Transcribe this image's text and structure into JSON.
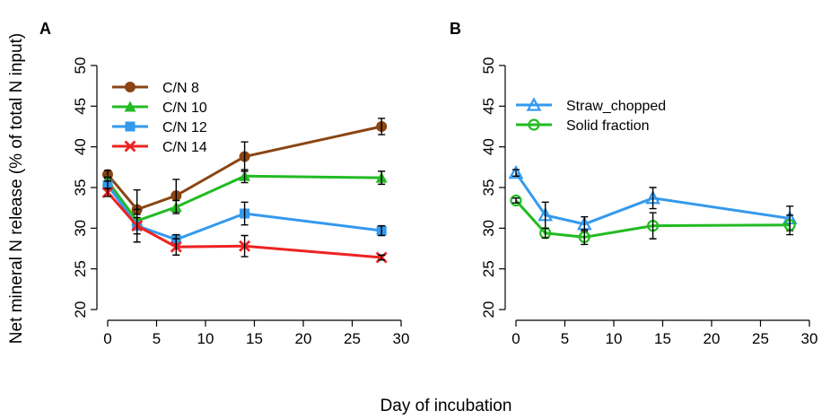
{
  "shared": {
    "ylabel": "Net mineral N release (% of total N input)",
    "xlabel": "Day of incubation"
  },
  "chart_data": [
    {
      "panel": "A",
      "type": "line",
      "xlim": [
        0,
        30
      ],
      "ylim": [
        20,
        50
      ],
      "xticks": [
        0,
        5,
        10,
        15,
        20,
        25,
        30
      ],
      "yticks": [
        20,
        25,
        30,
        35,
        40,
        45,
        50
      ],
      "legend_position": "top-left",
      "series": [
        {
          "name": "C/N 8",
          "color": "#8B4513",
          "marker": "circle",
          "x": [
            0,
            3,
            7,
            14,
            28
          ],
          "y": [
            36.6,
            32.3,
            34.0,
            38.8,
            42.5
          ],
          "err": [
            0.5,
            2.4,
            2.0,
            1.8,
            1.0
          ]
        },
        {
          "name": "C/N 10",
          "color": "#22BB22",
          "marker": "triangle",
          "x": [
            0,
            3,
            7,
            14,
            28
          ],
          "y": [
            35.8,
            30.9,
            32.6,
            36.4,
            36.2
          ],
          "err": [
            0.5,
            0.8,
            0.8,
            0.8,
            0.8
          ]
        },
        {
          "name": "C/N 12",
          "color": "#3399EE",
          "marker": "square",
          "x": [
            0,
            3,
            7,
            14,
            28
          ],
          "y": [
            35.3,
            30.3,
            28.6,
            31.8,
            29.7
          ],
          "err": [
            0.5,
            1.0,
            0.6,
            1.4,
            0.6
          ]
        },
        {
          "name": "C/N 14",
          "color": "#EE2222",
          "marker": "cross",
          "x": [
            0,
            3,
            7,
            14,
            28
          ],
          "y": [
            34.4,
            30.3,
            27.7,
            27.8,
            26.4
          ],
          "err": [
            0.5,
            2.0,
            1.0,
            1.3,
            0.3
          ]
        }
      ]
    },
    {
      "panel": "B",
      "type": "line",
      "xlim": [
        0,
        30
      ],
      "ylim": [
        20,
        50
      ],
      "xticks": [
        0,
        5,
        10,
        15,
        20,
        25,
        30
      ],
      "yticks": [
        20,
        25,
        30,
        35,
        40,
        45,
        50
      ],
      "legend_position": "top-left",
      "series": [
        {
          "name": "Straw_chopped",
          "color": "#3399EE",
          "marker": "triangle-open",
          "x": [
            0,
            3,
            7,
            14,
            28
          ],
          "y": [
            36.8,
            31.6,
            30.5,
            33.7,
            31.2
          ],
          "err": [
            0.4,
            1.6,
            0.9,
            1.3,
            1.5
          ]
        },
        {
          "name": "Solid fraction",
          "color": "#22BB22",
          "marker": "circle-open",
          "x": [
            0,
            3,
            7,
            14,
            28
          ],
          "y": [
            33.4,
            29.4,
            28.9,
            30.3,
            30.4
          ],
          "err": [
            0.3,
            0.6,
            0.9,
            1.6,
            1.2
          ]
        }
      ]
    }
  ]
}
